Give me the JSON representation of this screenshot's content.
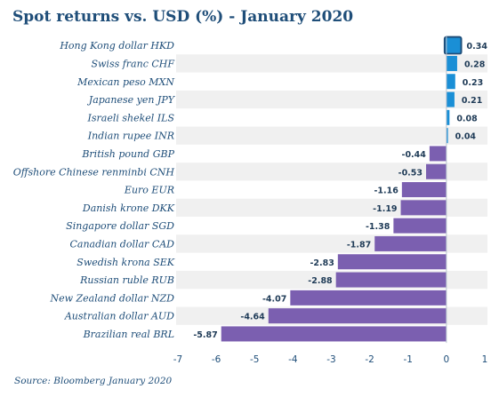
{
  "chart_data": {
    "type": "bar",
    "orientation": "horizontal",
    "title": "Spot returns vs. USD (%) - January 2020",
    "source": "Source: Bloomberg January 2020",
    "categories": [
      "Hong Kong dollar HKD",
      "Swiss franc CHF",
      "Mexican peso MXN",
      "Japanese yen JPY",
      "Israeli shekel ILS",
      "Indian rupee INR",
      "British pound GBP",
      "Offshore Chinese renminbi CNH",
      "Euro EUR",
      "Danish krone DKK",
      "Singapore dollar SGD",
      "Canadian dollar CAD",
      "Swedish krona SEK",
      "Russian ruble RUB",
      "New Zealand dollar NZD",
      "Australian dollar AUD",
      "Brazilian real BRL"
    ],
    "values": [
      0.34,
      0.28,
      0.23,
      0.21,
      0.08,
      0.04,
      -0.44,
      -0.53,
      -1.16,
      -1.19,
      -1.38,
      -1.87,
      -2.83,
      -2.88,
      -4.07,
      -4.64,
      -5.87
    ],
    "value_labels": [
      "0.34",
      "0.28",
      "0.23",
      "0.21",
      "0.08",
      "0.04",
      "-0.44",
      "-0.53",
      "-1.16",
      "-1.19",
      "-1.38",
      "-1.87",
      "-2.83",
      "-2.88",
      "-4.07",
      "-4.64",
      "-5.87"
    ],
    "xlim": [
      -7,
      1
    ],
    "xticks": [
      -7,
      -6,
      -5,
      -4,
      -3,
      -2,
      -1,
      0,
      1
    ],
    "highlighted_category": "Hong Kong dollar HKD",
    "grid": false,
    "colors": {
      "positive": "#1a8fd6",
      "negative": "#7b5fb0",
      "highlight_border": "#1f4e79",
      "stripe": "#f0f0f0",
      "text": "#1f4e79"
    }
  }
}
